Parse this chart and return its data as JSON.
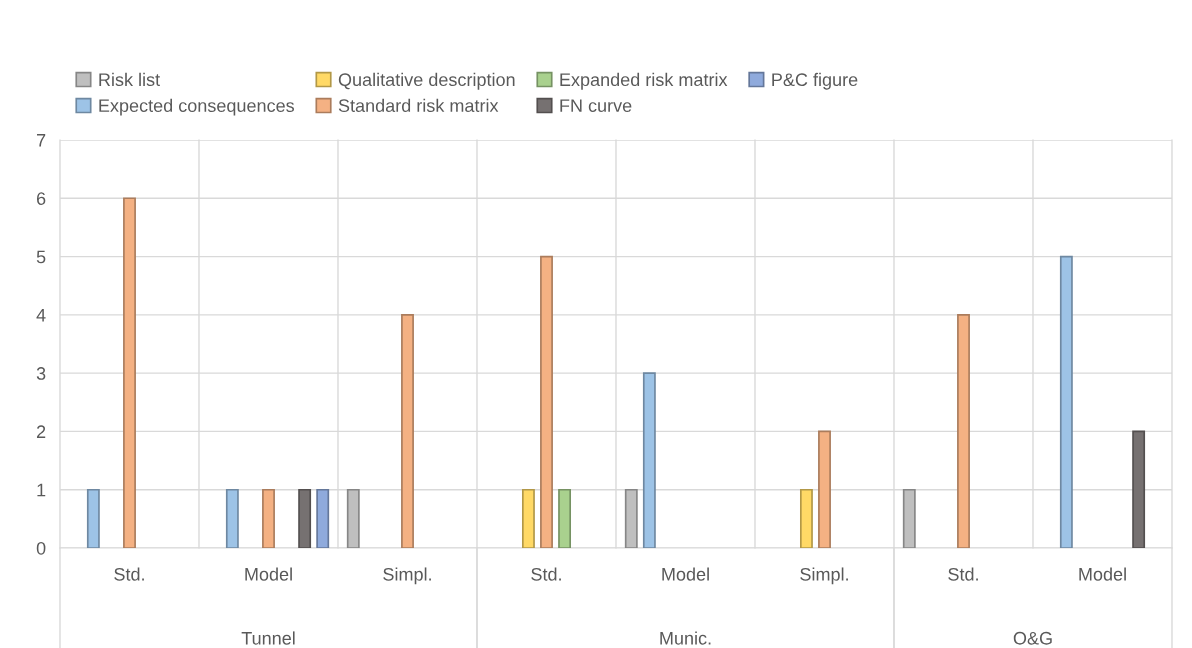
{
  "chart_data": {
    "type": "bar",
    "categories": [
      "Std.",
      "Model",
      "Simpl.",
      "Std.",
      "Model",
      "Simpl.",
      "Std.",
      "Model"
    ],
    "series": [
      {
        "name": "Risk list",
        "color": "#bfbfbf",
        "values": [
          null,
          null,
          1,
          null,
          1,
          null,
          1,
          null
        ]
      },
      {
        "name": "Expected consequences",
        "color": "#9dc3e6",
        "values": [
          1,
          1,
          null,
          null,
          3,
          null,
          null,
          5
        ]
      },
      {
        "name": "Qualitative description",
        "color": "#ffd966",
        "values": [
          null,
          null,
          null,
          1,
          null,
          1,
          null,
          null
        ]
      },
      {
        "name": "Standard risk matrix",
        "color": "#f4b183",
        "values": [
          6,
          1,
          4,
          5,
          null,
          2,
          4,
          null
        ]
      },
      {
        "name": "Expanded risk matrix",
        "color": "#a9d18e",
        "values": [
          null,
          null,
          null,
          1,
          null,
          null,
          null,
          null
        ]
      },
      {
        "name": "FN curve",
        "color": "#767171",
        "values": [
          null,
          1,
          null,
          null,
          null,
          null,
          null,
          2
        ]
      },
      {
        "name": "P&C figure",
        "color": "#8faadc",
        "values": [
          null,
          1,
          null,
          null,
          null,
          null,
          null,
          null
        ]
      }
    ],
    "annotations": [
      "Tunnel",
      "Munic.",
      "O&G"
    ],
    "ylim": [
      0,
      7
    ],
    "yticks": [
      0,
      1,
      2,
      3,
      4,
      5,
      6,
      7
    ],
    "grid": "y",
    "legend": "top"
  }
}
